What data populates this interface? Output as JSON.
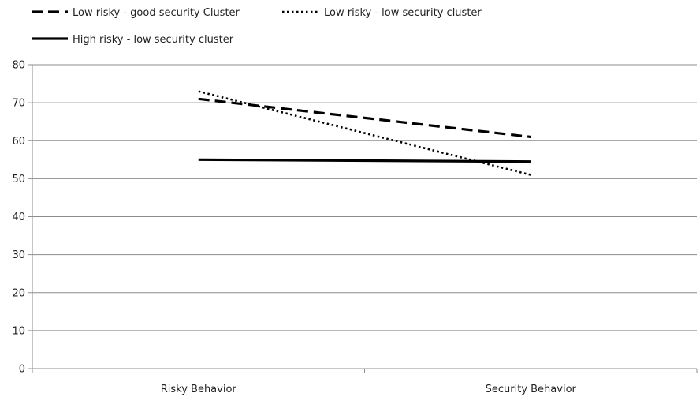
{
  "chart_data": {
    "type": "line",
    "categories": [
      "Risky Behavior",
      "Security Behavior"
    ],
    "series": [
      {
        "name": "Low risky - good security Cluster",
        "values": [
          71,
          61
        ],
        "dash": "dashed",
        "color": "#000000"
      },
      {
        "name": "Low risky - low security cluster",
        "values": [
          73,
          51
        ],
        "dash": "dotted",
        "color": "#000000"
      },
      {
        "name": "High risky - low security cluster",
        "values": [
          55,
          54.5
        ],
        "dash": "solid",
        "color": "#000000"
      }
    ],
    "ylim": [
      0,
      80
    ],
    "yticks": [
      0,
      10,
      20,
      30,
      40,
      50,
      60,
      70,
      80
    ],
    "grid": true,
    "legend_position": "top-left",
    "title": "",
    "xlabel": "",
    "ylabel": ""
  }
}
